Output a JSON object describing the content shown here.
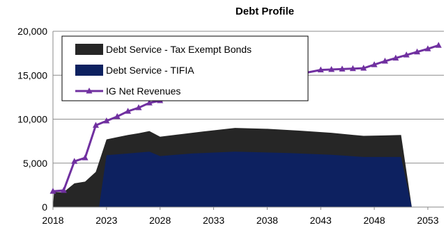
{
  "chart_data": {
    "type": "area",
    "title": "Debt Profile",
    "xlabel": "",
    "ylabel": "",
    "xlim": [
      2018,
      2054.5
    ],
    "ylim": [
      0,
      20000
    ],
    "x_ticks": [
      2018,
      2023,
      2028,
      2033,
      2038,
      2043,
      2048,
      2053
    ],
    "y_ticks": [
      0,
      5000,
      10000,
      15000,
      20000
    ],
    "y_tick_labels": [
      "0",
      "5,000",
      "10,000",
      "15,000",
      "20,000"
    ],
    "grid": "horizontal",
    "legend_position": "top-left",
    "series": [
      {
        "name": "Debt Service - Tax Exempt Bonds",
        "kind": "stacked-area",
        "color": "#262626",
        "points": [
          [
            2018,
            0
          ],
          [
            2018.1,
            1700
          ],
          [
            2019,
            1700
          ],
          [
            2020,
            2700
          ],
          [
            2021,
            2900
          ],
          [
            2022,
            4000
          ],
          [
            2023,
            7700
          ],
          [
            2024,
            7950
          ],
          [
            2025,
            8200
          ],
          [
            2026,
            8400
          ],
          [
            2027,
            8650
          ],
          [
            2028,
            8000
          ],
          [
            2030,
            8300
          ],
          [
            2032,
            8600
          ],
          [
            2035,
            9000
          ],
          [
            2038,
            8900
          ],
          [
            2041,
            8700
          ],
          [
            2044,
            8450
          ],
          [
            2047,
            8100
          ],
          [
            2049,
            8150
          ],
          [
            2050.5,
            8200
          ],
          [
            2051.5,
            0
          ]
        ]
      },
      {
        "name": "Debt Service - TIFIA",
        "kind": "area",
        "color": "#0d2160",
        "points": [
          [
            2022.3,
            0
          ],
          [
            2023,
            5900
          ],
          [
            2025,
            6100
          ],
          [
            2027,
            6300
          ],
          [
            2028,
            5800
          ],
          [
            2031,
            6100
          ],
          [
            2035,
            6300
          ],
          [
            2040,
            6150
          ],
          [
            2044,
            5950
          ],
          [
            2047,
            5700
          ],
          [
            2050.5,
            5700
          ],
          [
            2051.5,
            0
          ]
        ]
      },
      {
        "name": "IG Net Revenues",
        "kind": "line",
        "color": "#7030a0",
        "points": [
          [
            2018,
            1800
          ],
          [
            2019,
            1900
          ],
          [
            2020,
            5200
          ],
          [
            2021,
            5600
          ],
          [
            2022,
            9300
          ],
          [
            2023,
            9800
          ],
          [
            2024,
            10300
          ],
          [
            2025,
            10900
          ],
          [
            2026,
            11300
          ],
          [
            2027,
            11850
          ],
          [
            2028,
            12100
          ],
          [
            2043,
            15600
          ],
          [
            2044,
            15650
          ],
          [
            2045,
            15700
          ],
          [
            2046,
            15750
          ],
          [
            2047,
            15800
          ],
          [
            2048,
            16200
          ],
          [
            2049,
            16600
          ],
          [
            2050,
            16950
          ],
          [
            2051,
            17300
          ],
          [
            2052,
            17650
          ],
          [
            2053,
            18000
          ],
          [
            2054,
            18400
          ]
        ]
      }
    ],
    "colors": {
      "grid": "#8c8c8c",
      "axis": "#888888",
      "legend_border": "#000000"
    }
  }
}
